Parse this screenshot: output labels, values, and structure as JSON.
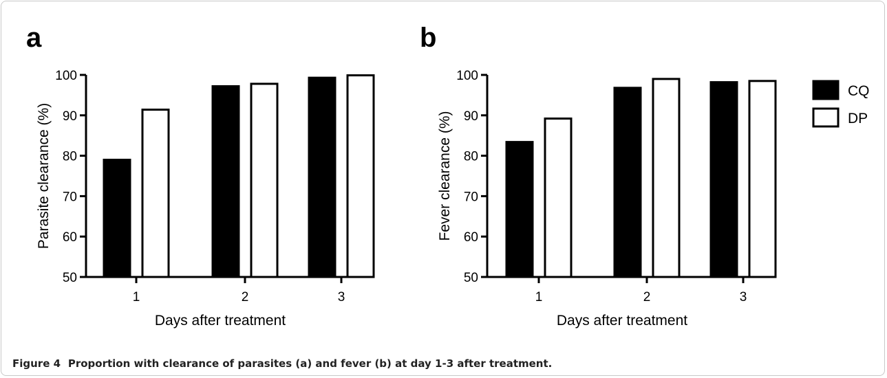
{
  "caption": {
    "label": "Figure 4",
    "text": "Proportion with clearance of parasites (a) and fever (b) at day 1-3 after treatment."
  },
  "chart_data": [
    {
      "type": "bar",
      "panel_label": "a",
      "categories": [
        "1",
        "2",
        "3"
      ],
      "series": [
        {
          "name": "CQ",
          "values": [
            79,
            97.2,
            99.3
          ],
          "color": "#000000"
        },
        {
          "name": "DP",
          "values": [
            91.4,
            97.8,
            99.9
          ],
          "color": "#ffffff"
        }
      ],
      "title": "",
      "xlabel": "Days after treatment",
      "ylabel": "Parasite clearance (%)",
      "ylim": [
        50,
        100
      ],
      "yticks": [
        "50",
        "60",
        "70",
        "80",
        "90",
        "100"
      ],
      "grid": false
    },
    {
      "type": "bar",
      "panel_label": "b",
      "categories": [
        "1",
        "2",
        "3"
      ],
      "series": [
        {
          "name": "CQ",
          "values": [
            83.4,
            96.8,
            98.2
          ],
          "color": "#000000"
        },
        {
          "name": "DP",
          "values": [
            89.2,
            99,
            98.5
          ],
          "color": "#ffffff"
        }
      ],
      "title": "",
      "xlabel": "Days after treatment",
      "ylabel": "Fever clearance (%)",
      "ylim": [
        50,
        100
      ],
      "yticks": [
        "50",
        "60",
        "70",
        "80",
        "90",
        "100"
      ],
      "grid": false
    }
  ],
  "legend": {
    "placement": "right",
    "items": [
      {
        "name": "CQ",
        "color": "#000000"
      },
      {
        "name": "DP",
        "color": "#ffffff"
      }
    ]
  }
}
